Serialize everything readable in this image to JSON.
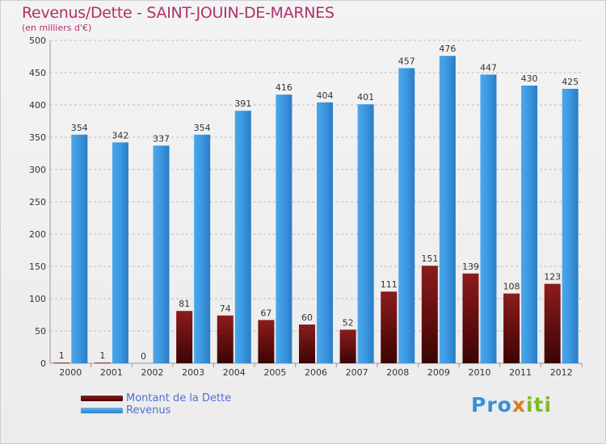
{
  "header": {
    "title": "Revenus/Dette - SAINT-JOUIN-DE-MARNES",
    "subtitle": "(en milliers d'€)"
  },
  "legend": {
    "debt_label": "Montant de la Dette",
    "revenue_label": "Revenus"
  },
  "logo": {
    "part1": "Pro",
    "part2": "x",
    "part3": "iti"
  },
  "colors": {
    "debt": "#6e0f0f",
    "revenue": "#3b97df",
    "title": "#b0306a",
    "legend_text": "#4f6fd6"
  },
  "chart_data": {
    "type": "bar",
    "title": "Revenus/Dette - SAINT-JOUIN-DE-MARNES",
    "subtitle": "(en milliers d'€)",
    "xlabel": "",
    "ylabel": "",
    "ylim": [
      0,
      500
    ],
    "yticks": [
      0,
      50,
      100,
      150,
      200,
      250,
      300,
      350,
      400,
      450,
      500
    ],
    "grid": "horizontal",
    "legend_position": "bottom-left",
    "categories": [
      "2000",
      "2001",
      "2002",
      "2003",
      "2004",
      "2005",
      "2006",
      "2007",
      "2008",
      "2009",
      "2010",
      "2011",
      "2012"
    ],
    "series": [
      {
        "name": "Montant de la Dette",
        "values": [
          1,
          1,
          0,
          81,
          74,
          67,
          60,
          52,
          111,
          151,
          139,
          108,
          123
        ]
      },
      {
        "name": "Revenus",
        "values": [
          354,
          342,
          337,
          354,
          391,
          416,
          404,
          401,
          457,
          476,
          447,
          430,
          425
        ]
      }
    ]
  }
}
